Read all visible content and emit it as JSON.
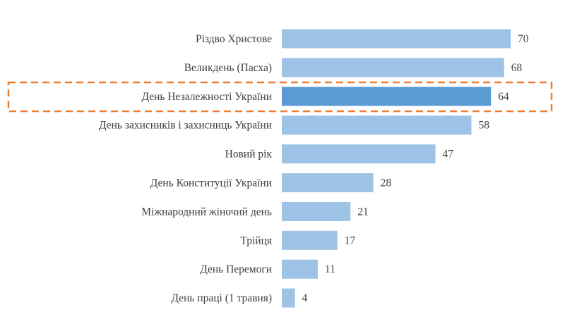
{
  "chart_data": {
    "type": "bar",
    "orientation": "horizontal",
    "categories": [
      "Різдво Христове",
      "Великдень (Пасха)",
      "День Незалежності України",
      "День захисників і захисниць України",
      "Новий рік",
      "День Конституції України",
      "Міжнародний жіночий день",
      "Трійця",
      "День Перемоги",
      "День праці (1 травня)"
    ],
    "values": [
      70,
      68,
      64,
      58,
      47,
      28,
      21,
      17,
      11,
      4
    ],
    "highlighted": "День Незалежності України",
    "xlim": [
      0,
      70
    ],
    "grid": false,
    "colors": {
      "bar": "#9dc3e6",
      "highlight_bar": "#5b9bd5",
      "highlight_box": "#ed7d31",
      "label": "#404040"
    }
  }
}
